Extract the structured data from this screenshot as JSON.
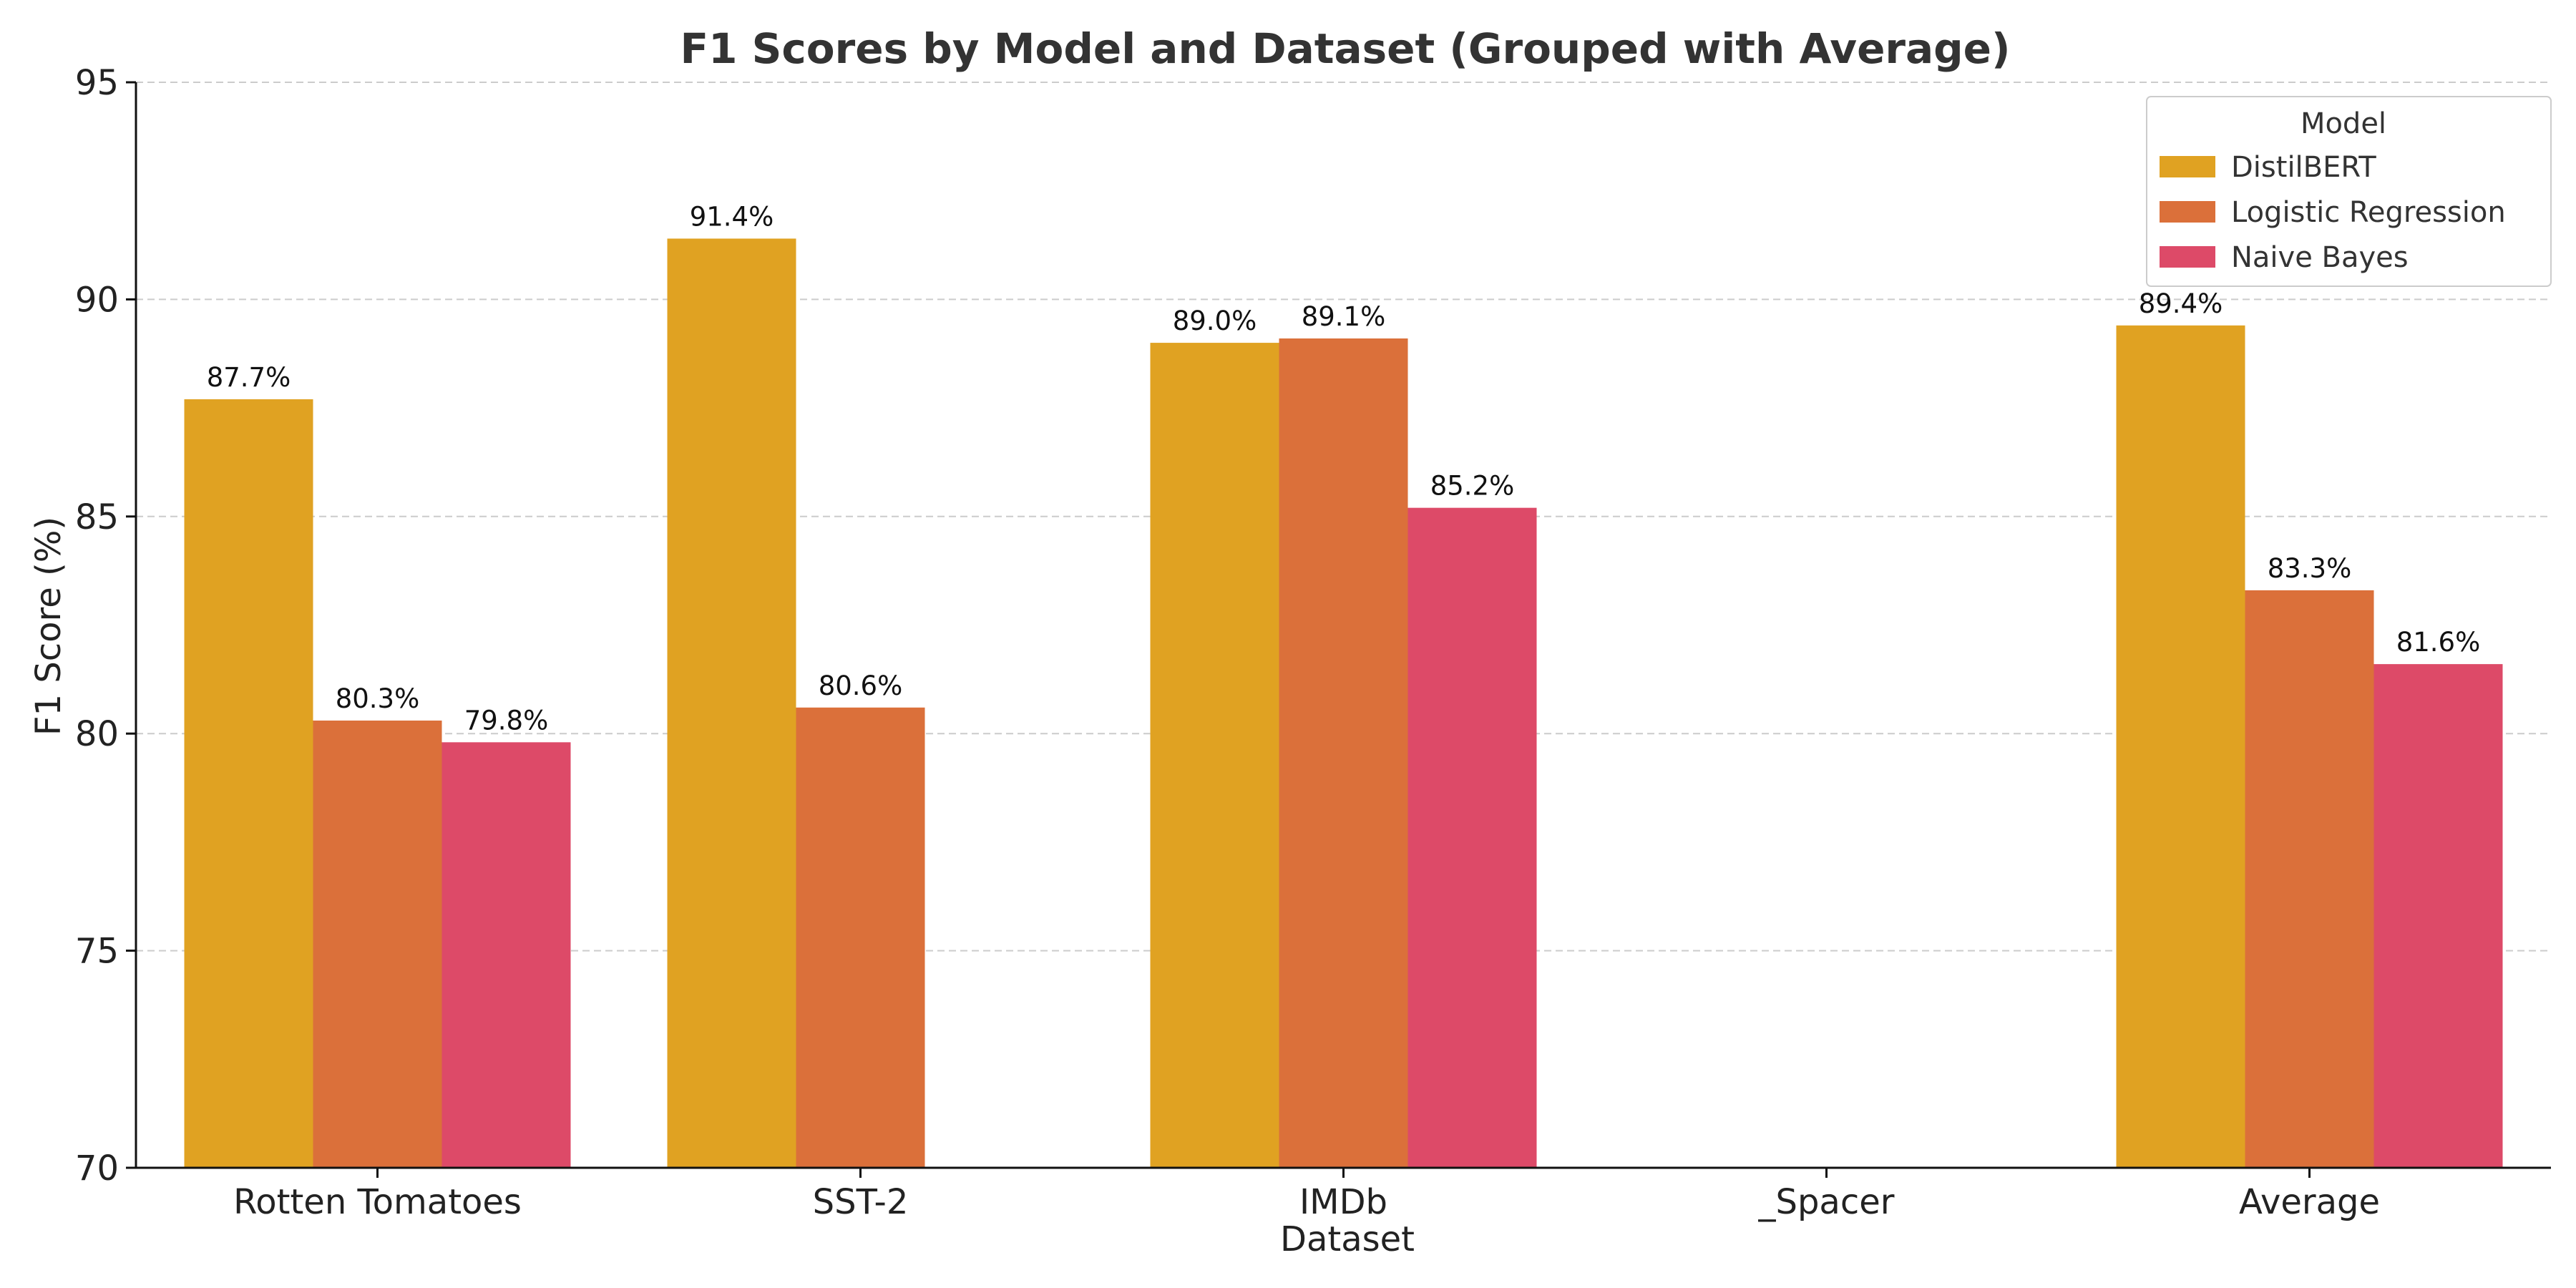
{
  "chart_data": {
    "type": "bar",
    "title": "F1 Scores by Model and Dataset (Grouped with Average)",
    "xlabel": "Dataset",
    "ylabel": "F1 Score (%)",
    "ylim": [
      70,
      95
    ],
    "yticks": [
      70,
      75,
      80,
      85,
      90,
      95
    ],
    "categories": [
      "Rotten Tomatoes",
      "SST-2",
      "IMDb",
      "_Spacer",
      "Average"
    ],
    "series": [
      {
        "name": "DistilBERT",
        "color": "#E0A222",
        "values": [
          87.7,
          91.4,
          89.0,
          null,
          89.4
        ]
      },
      {
        "name": "Logistic Regression",
        "color": "#DB703A",
        "values": [
          80.3,
          80.6,
          89.1,
          null,
          83.3
        ]
      },
      {
        "name": "Naive Bayes",
        "color": "#DD4A68",
        "values": [
          79.8,
          null,
          85.2,
          null,
          81.6
        ]
      }
    ],
    "legend": {
      "title": "Model",
      "position": "top-right"
    },
    "grid": true
  }
}
